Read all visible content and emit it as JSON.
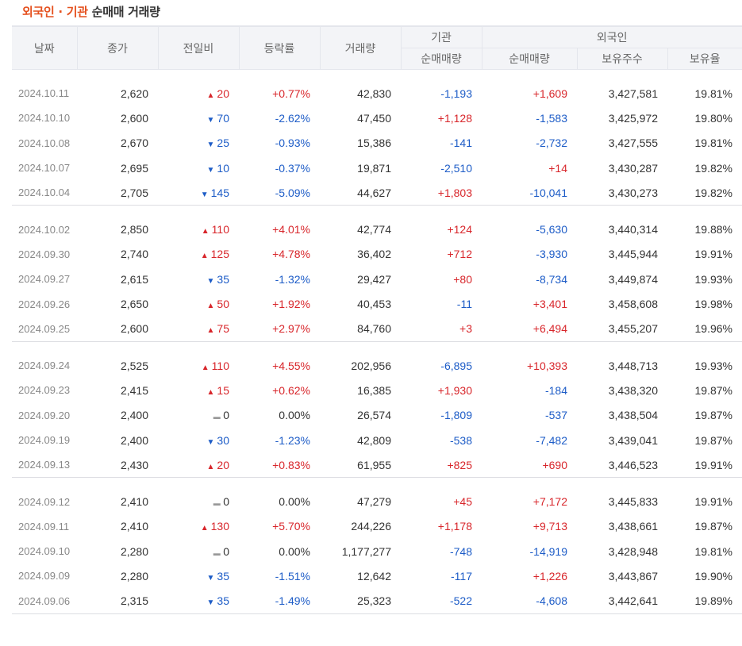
{
  "title": {
    "highlight": "외국인 · 기관",
    "rest": "순매매 거래량"
  },
  "headers": {
    "date": "날짜",
    "close": "종가",
    "change": "전일비",
    "rate": "등락률",
    "volume": "거래량",
    "inst_group": "기관",
    "inst_net": "순매매량",
    "foreign_group": "외국인",
    "foreign_net": "순매매량",
    "foreign_shares": "보유주수",
    "foreign_ratio": "보유율"
  },
  "colors": {
    "up": "#d8262b",
    "down": "#1d5cc7",
    "accent": "#e5511f"
  },
  "rows": [
    {
      "date": "2024.10.11",
      "close": "2,620",
      "dir": "up",
      "change": "20",
      "rate": "+0.77%",
      "volume": "42,830",
      "inst": "-1,193",
      "frn": "+1,609",
      "shares": "3,427,581",
      "ratio": "19.81%"
    },
    {
      "date": "2024.10.10",
      "close": "2,600",
      "dir": "down",
      "change": "70",
      "rate": "-2.62%",
      "volume": "47,450",
      "inst": "+1,128",
      "frn": "-1,583",
      "shares": "3,425,972",
      "ratio": "19.80%"
    },
    {
      "date": "2024.10.08",
      "close": "2,670",
      "dir": "down",
      "change": "25",
      "rate": "-0.93%",
      "volume": "15,386",
      "inst": "-141",
      "frn": "-2,732",
      "shares": "3,427,555",
      "ratio": "19.81%"
    },
    {
      "date": "2024.10.07",
      "close": "2,695",
      "dir": "down",
      "change": "10",
      "rate": "-0.37%",
      "volume": "19,871",
      "inst": "-2,510",
      "frn": "+14",
      "shares": "3,430,287",
      "ratio": "19.82%"
    },
    {
      "date": "2024.10.04",
      "close": "2,705",
      "dir": "down",
      "change": "145",
      "rate": "-5.09%",
      "volume": "44,627",
      "inst": "+1,803",
      "frn": "-10,041",
      "shares": "3,430,273",
      "ratio": "19.82%"
    },
    {
      "date": "2024.10.02",
      "close": "2,850",
      "dir": "up",
      "change": "110",
      "rate": "+4.01%",
      "volume": "42,774",
      "inst": "+124",
      "frn": "-5,630",
      "shares": "3,440,314",
      "ratio": "19.88%"
    },
    {
      "date": "2024.09.30",
      "close": "2,740",
      "dir": "up",
      "change": "125",
      "rate": "+4.78%",
      "volume": "36,402",
      "inst": "+712",
      "frn": "-3,930",
      "shares": "3,445,944",
      "ratio": "19.91%"
    },
    {
      "date": "2024.09.27",
      "close": "2,615",
      "dir": "down",
      "change": "35",
      "rate": "-1.32%",
      "volume": "29,427",
      "inst": "+80",
      "frn": "-8,734",
      "shares": "3,449,874",
      "ratio": "19.93%"
    },
    {
      "date": "2024.09.26",
      "close": "2,650",
      "dir": "up",
      "change": "50",
      "rate": "+1.92%",
      "volume": "40,453",
      "inst": "-11",
      "frn": "+3,401",
      "shares": "3,458,608",
      "ratio": "19.98%"
    },
    {
      "date": "2024.09.25",
      "close": "2,600",
      "dir": "up",
      "change": "75",
      "rate": "+2.97%",
      "volume": "84,760",
      "inst": "+3",
      "frn": "+6,494",
      "shares": "3,455,207",
      "ratio": "19.96%"
    },
    {
      "date": "2024.09.24",
      "close": "2,525",
      "dir": "up",
      "change": "110",
      "rate": "+4.55%",
      "volume": "202,956",
      "inst": "-6,895",
      "frn": "+10,393",
      "shares": "3,448,713",
      "ratio": "19.93%"
    },
    {
      "date": "2024.09.23",
      "close": "2,415",
      "dir": "up",
      "change": "15",
      "rate": "+0.62%",
      "volume": "16,385",
      "inst": "+1,930",
      "frn": "-184",
      "shares": "3,438,320",
      "ratio": "19.87%"
    },
    {
      "date": "2024.09.20",
      "close": "2,400",
      "dir": "flat",
      "change": "0",
      "rate": "0.00%",
      "volume": "26,574",
      "inst": "-1,809",
      "frn": "-537",
      "shares": "3,438,504",
      "ratio": "19.87%"
    },
    {
      "date": "2024.09.19",
      "close": "2,400",
      "dir": "down",
      "change": "30",
      "rate": "-1.23%",
      "volume": "42,809",
      "inst": "-538",
      "frn": "-7,482",
      "shares": "3,439,041",
      "ratio": "19.87%"
    },
    {
      "date": "2024.09.13",
      "close": "2,430",
      "dir": "up",
      "change": "20",
      "rate": "+0.83%",
      "volume": "61,955",
      "inst": "+825",
      "frn": "+690",
      "shares": "3,446,523",
      "ratio": "19.91%"
    },
    {
      "date": "2024.09.12",
      "close": "2,410",
      "dir": "flat",
      "change": "0",
      "rate": "0.00%",
      "volume": "47,279",
      "inst": "+45",
      "frn": "+7,172",
      "shares": "3,445,833",
      "ratio": "19.91%"
    },
    {
      "date": "2024.09.11",
      "close": "2,410",
      "dir": "up",
      "change": "130",
      "rate": "+5.70%",
      "volume": "244,226",
      "inst": "+1,178",
      "frn": "+9,713",
      "shares": "3,438,661",
      "ratio": "19.87%"
    },
    {
      "date": "2024.09.10",
      "close": "2,280",
      "dir": "flat",
      "change": "0",
      "rate": "0.00%",
      "volume": "1,177,277",
      "inst": "-748",
      "frn": "-14,919",
      "shares": "3,428,948",
      "ratio": "19.81%"
    },
    {
      "date": "2024.09.09",
      "close": "2,280",
      "dir": "down",
      "change": "35",
      "rate": "-1.51%",
      "volume": "12,642",
      "inst": "-117",
      "frn": "+1,226",
      "shares": "3,443,867",
      "ratio": "19.90%"
    },
    {
      "date": "2024.09.06",
      "close": "2,315",
      "dir": "down",
      "change": "35",
      "rate": "-1.49%",
      "volume": "25,323",
      "inst": "-522",
      "frn": "-4,608",
      "shares": "3,442,641",
      "ratio": "19.89%"
    }
  ]
}
